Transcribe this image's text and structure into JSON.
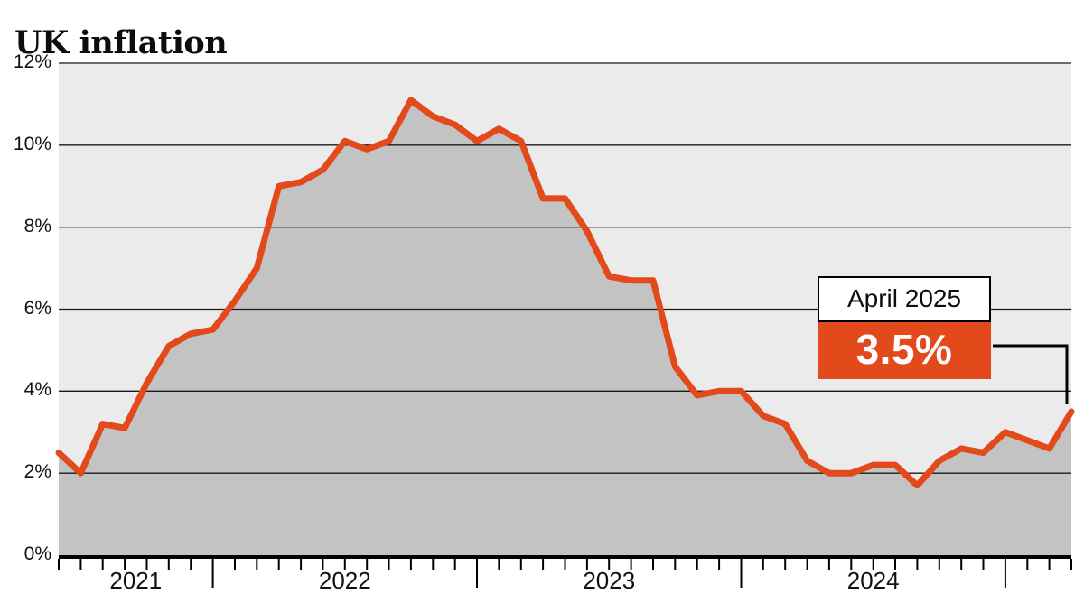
{
  "header": {
    "title": "UK inflation"
  },
  "chart_data": {
    "type": "area",
    "title": "UK inflation",
    "unit": "%",
    "months": [
      "Jun 2021",
      "Jul 2021",
      "Aug 2021",
      "Sep 2021",
      "Oct 2021",
      "Nov 2021",
      "Dec 2021",
      "Jan 2022",
      "Feb 2022",
      "Mar 2022",
      "Apr 2022",
      "May 2022",
      "Jun 2022",
      "Jul 2022",
      "Aug 2022",
      "Sep 2022",
      "Oct 2022",
      "Nov 2022",
      "Dec 2022",
      "Jan 2023",
      "Feb 2023",
      "Mar 2023",
      "Apr 2023",
      "May 2023",
      "Jun 2023",
      "Jul 2023",
      "Aug 2023",
      "Sep 2023",
      "Oct 2023",
      "Nov 2023",
      "Dec 2023",
      "Jan 2024",
      "Feb 2024",
      "Mar 2024",
      "Apr 2024",
      "May 2024",
      "Jun 2024",
      "Jul 2024",
      "Aug 2024",
      "Sep 2024",
      "Oct 2024",
      "Nov 2024",
      "Dec 2024",
      "Jan 2025",
      "Feb 2025",
      "Mar 2025",
      "Apr 2025"
    ],
    "values": [
      2.5,
      2.0,
      3.2,
      3.1,
      4.2,
      5.1,
      5.4,
      5.5,
      6.2,
      7.0,
      9.0,
      9.1,
      9.4,
      10.1,
      9.9,
      10.1,
      11.1,
      10.7,
      10.5,
      10.1,
      10.4,
      10.1,
      8.7,
      8.7,
      7.9,
      6.8,
      6.7,
      6.7,
      4.6,
      3.9,
      4.0,
      4.0,
      3.4,
      3.2,
      2.3,
      2.0,
      2.0,
      2.2,
      2.2,
      1.7,
      2.3,
      2.6,
      2.5,
      3.0,
      2.8,
      2.6,
      3.5
    ],
    "ylim": [
      0,
      12
    ],
    "y_ticks": [
      0,
      2,
      4,
      6,
      8,
      10,
      12
    ],
    "y_tick_labels": [
      "0%",
      "2%",
      "4%",
      "6%",
      "8%",
      "10%",
      "12%"
    ],
    "year_labels": [
      "2021",
      "2022",
      "2023",
      "2024"
    ],
    "grid": true,
    "legend": "none",
    "annotation": {
      "label": "April 2025",
      "value": "3.5%"
    },
    "colors": {
      "line": "#e2491b",
      "area": "#c3c3c3",
      "plot_bg": "#ebebeb",
      "grid": "#1a1a1a",
      "axis": "#000000",
      "annotation_bg": "#e2491b",
      "annotation_text": "#ffffff"
    }
  }
}
